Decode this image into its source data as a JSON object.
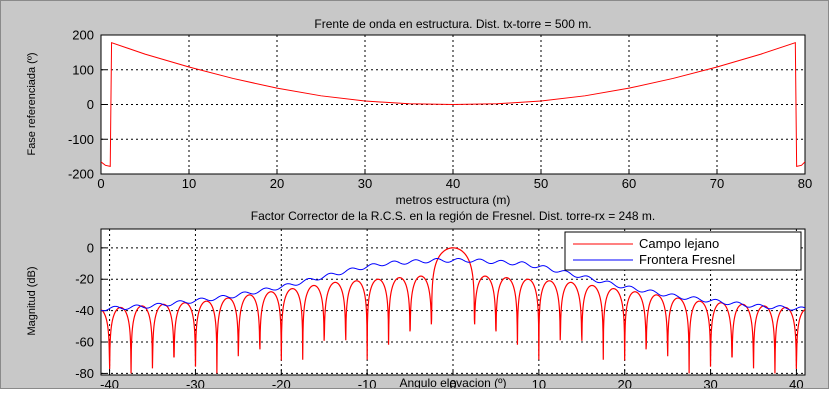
{
  "colors": {
    "figure_bg": "#c8c8c8",
    "axes_bg": "#ffffff",
    "series_red": "#ff0000",
    "series_blue": "#0000ff",
    "grid": "#000000"
  },
  "chart_data": [
    {
      "type": "line",
      "title": "Frente de onda en estructura. Dist. tx-torre = 500 m.",
      "xlabel": "metros estructura (m)",
      "ylabel": "Fase referenciada (º)",
      "xlim": [
        0,
        80
      ],
      "ylim": [
        -200,
        200
      ],
      "xticks": [
        0,
        10,
        20,
        30,
        40,
        50,
        60,
        70,
        80
      ],
      "xtick_labels": [
        "0",
        "10",
        "20",
        "30",
        "40",
        "50",
        "60",
        "70",
        "80"
      ],
      "yticks": [
        200,
        100,
        0,
        -100,
        -200
      ],
      "ytick_labels": [
        "200",
        "100",
        "0",
        "-100",
        "-200"
      ],
      "grid": true,
      "series": [
        {
          "color": "#ff0000",
          "x": [
            0,
            0.5,
            1.05,
            1.2,
            5,
            10,
            15,
            20,
            25,
            30,
            35,
            40,
            45,
            50,
            55,
            60,
            65,
            70,
            75,
            78.9,
            79.05,
            79.6,
            80
          ],
          "y": [
            -165,
            -175,
            -178,
            178,
            145,
            108,
            75,
            47,
            25,
            10,
            2,
            0,
            2,
            10,
            25,
            47,
            75,
            108,
            145,
            178,
            -178,
            -175,
            -165
          ]
        }
      ]
    },
    {
      "type": "line",
      "title": "Factor Corrector de la R.C.S. en la región de Fresnel. Dist. torre-rx = 248 m.",
      "xlabel": "Angulo elevacion (º)",
      "ylabel": "Magnitud (dB)",
      "xlim": [
        -41,
        41
      ],
      "ylim": [
        -81,
        12
      ],
      "xticks": [
        -40,
        -30,
        -20,
        -10,
        0,
        10,
        20,
        30,
        40
      ],
      "xtick_labels": [
        "-40",
        "-30",
        "-20",
        "-10",
        "0",
        "10",
        "20",
        "30",
        "40"
      ],
      "yticks": [
        0,
        -20,
        -40,
        -60,
        -80
      ],
      "ytick_labels": [
        "0",
        "-20",
        "-40",
        "-60",
        "-80"
      ],
      "grid": true,
      "legend": {
        "position": "top-right",
        "entries": [
          "Campo lejano",
          "Frontera Fresnel"
        ]
      },
      "series": [
        {
          "name": "Campo lejano",
          "color": "#ff0000",
          "pattern": "sinc squared main lobe at 0, null spacing 2.5 deg, peak sidelobes falling from -18 dB near center to -38 dB at edges, nulls to -80 dB",
          "main_lobe_peak": 0,
          "first_null": 2.5,
          "lobe_peaks": [
            [
              3.75,
              -18
            ],
            [
              6.25,
              -19
            ],
            [
              8.75,
              -20
            ],
            [
              11.25,
              -21
            ],
            [
              13.75,
              -22
            ],
            [
              16.25,
              -24
            ],
            [
              18.75,
              -26
            ],
            [
              21.25,
              -28
            ],
            [
              23.75,
              -30
            ],
            [
              26.25,
              -32
            ],
            [
              28.75,
              -34
            ],
            [
              31.25,
              -35
            ],
            [
              33.75,
              -36
            ],
            [
              36.25,
              -37
            ],
            [
              38.75,
              -38
            ],
            [
              41.25,
              -39
            ]
          ]
        },
        {
          "name": "Frontera Fresnel",
          "color": "#0000ff",
          "x": [
            -41,
            -38,
            -35,
            -32,
            -29,
            -26,
            -23,
            -20,
            -17,
            -14,
            -11,
            -8,
            -5,
            -2,
            0,
            2,
            5,
            8,
            11,
            14,
            17,
            20,
            23,
            26,
            29,
            32,
            35,
            38,
            41
          ],
          "y": [
            -39,
            -38,
            -37,
            -35,
            -33,
            -31,
            -28,
            -25,
            -21,
            -17,
            -13,
            -10,
            -9,
            -8,
            -8,
            -8,
            -9,
            -10,
            -13,
            -17,
            -21,
            -25,
            -28,
            -31,
            -33,
            -35,
            -37,
            -38,
            -39
          ]
        }
      ]
    }
  ]
}
